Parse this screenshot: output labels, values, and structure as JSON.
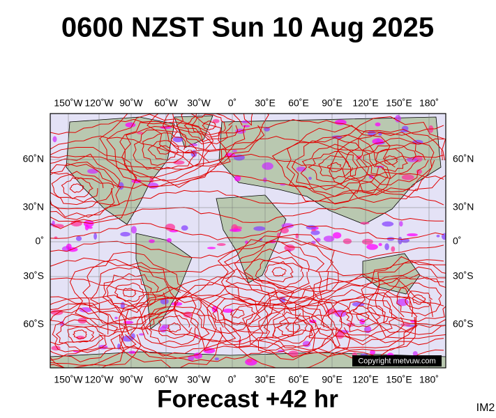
{
  "title": "0600 NZST Sun 10 Aug 2025",
  "map": {
    "longitude_labels": [
      "150˚W",
      "120˚W",
      "90˚W",
      "60˚W",
      "30˚W",
      "0˚",
      "30˚E",
      "60˚E",
      "90˚E",
      "120˚E",
      "150˚E",
      "180˚"
    ],
    "latitude_labels": [
      "60˚N",
      "30˚N",
      "0˚",
      "30˚S",
      "60˚S"
    ],
    "copyright": "Copyright metvuw.com"
  },
  "footer": {
    "forecast": "Forecast +42 hr",
    "code": "IM2"
  }
}
